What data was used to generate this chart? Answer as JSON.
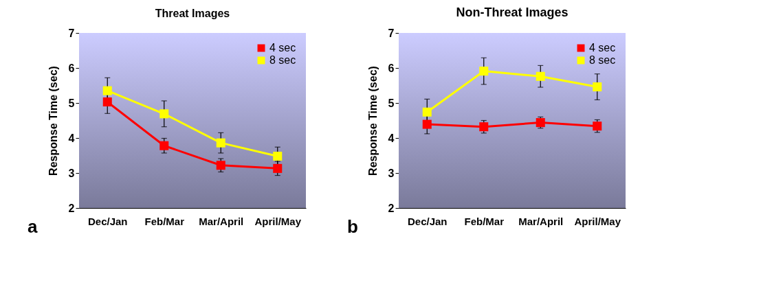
{
  "chart_data": [
    {
      "type": "line",
      "title": "Threat Images",
      "ylabel": "Response Time (sec)",
      "categories": [
        "Dec/Jan",
        "Feb/Mar",
        "Mar/April",
        "April/May"
      ],
      "ylim": [
        2,
        7
      ],
      "yticks": [
        2,
        3,
        4,
        5,
        6,
        7
      ],
      "grid": false,
      "legend": "top right",
      "marker": "square",
      "line_style": "solid",
      "annotations": [
        "a"
      ],
      "series": [
        {
          "name": "4 sec",
          "color": "#ff0000",
          "values": [
            5.03,
            3.78,
            3.22,
            3.13
          ],
          "errors": [
            0.33,
            0.21,
            0.19,
            0.2
          ]
        },
        {
          "name": "8 sec",
          "color": "#ffff00",
          "values": [
            5.35,
            4.69,
            3.86,
            3.48
          ],
          "errors": [
            0.37,
            0.37,
            0.29,
            0.26
          ]
        }
      ]
    },
    {
      "type": "line",
      "title": "Non-Threat Images",
      "ylabel": "Response Time (sec)",
      "categories": [
        "Dec/Jan",
        "Feb/Mar",
        "Mar/April",
        "April/May"
      ],
      "ylim": [
        2,
        7
      ],
      "yticks": [
        2,
        3,
        4,
        5,
        6,
        7
      ],
      "grid": false,
      "legend": "top right",
      "marker": "square",
      "line_style": "solid",
      "annotations": [
        "b"
      ],
      "series": [
        {
          "name": "4 sec",
          "color": "#ff0000",
          "values": [
            4.39,
            4.32,
            4.44,
            4.34
          ],
          "errors": [
            0.27,
            0.18,
            0.16,
            0.18
          ]
        },
        {
          "name": "8 sec",
          "color": "#ffff00",
          "values": [
            4.74,
            5.91,
            5.76,
            5.46
          ],
          "errors": [
            0.37,
            0.38,
            0.31,
            0.37
          ]
        }
      ]
    }
  ]
}
